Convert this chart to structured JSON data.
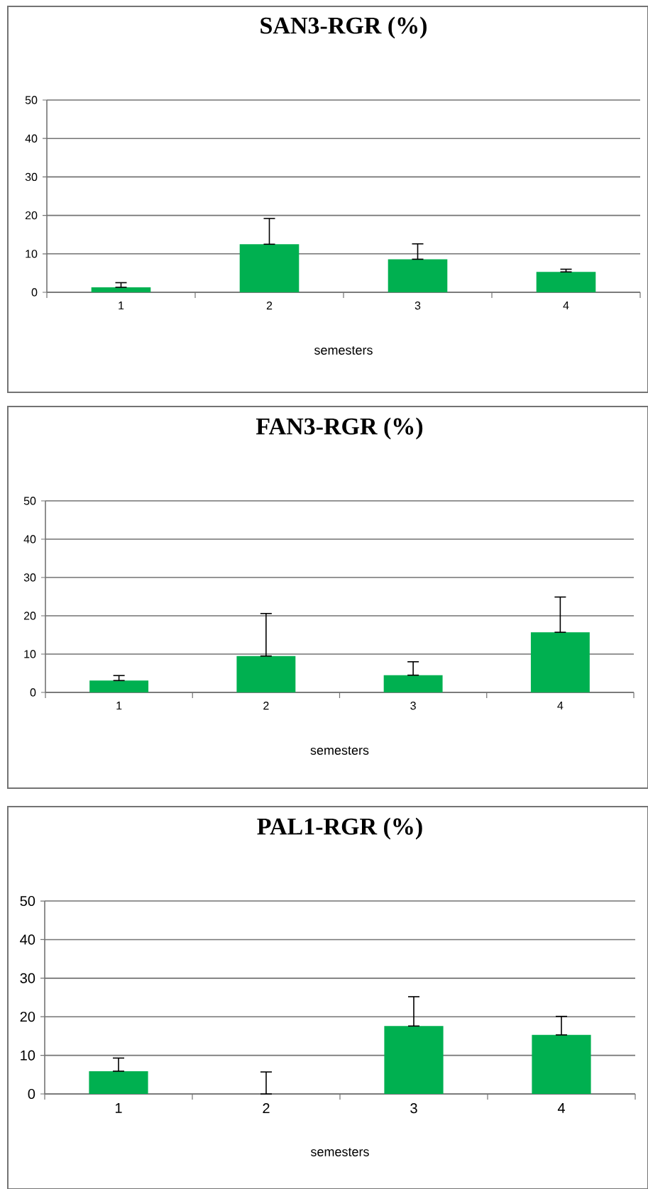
{
  "chart_data": [
    {
      "type": "bar",
      "title": "SAN3-RGR (%)",
      "xlabel": "semesters",
      "categories": [
        "1",
        "2",
        "3",
        "4"
      ],
      "values": [
        1.3,
        12.5,
        8.6,
        5.3
      ],
      "errors": [
        [
          1.3,
          2.5
        ],
        [
          12.5,
          19.2
        ],
        [
          8.6,
          12.6
        ],
        [
          5.3,
          6.0
        ]
      ],
      "color": "#00b050",
      "ylim": [
        0,
        50
      ],
      "yticks": [
        0,
        10,
        20,
        30,
        40,
        50
      ],
      "grid": "y"
    },
    {
      "type": "bar",
      "title": "FAN3-RGR (%)",
      "xlabel": "semesters",
      "categories": [
        "1",
        "2",
        "3",
        "4"
      ],
      "values": [
        3.1,
        9.5,
        4.5,
        15.7
      ],
      "errors": [
        [
          3.1,
          4.4
        ],
        [
          9.5,
          20.6
        ],
        [
          4.5,
          8.0
        ],
        [
          15.7,
          24.9
        ]
      ],
      "color": "#00b050",
      "ylim": [
        0,
        50
      ],
      "yticks": [
        0,
        10,
        20,
        30,
        40,
        50
      ],
      "grid": "y"
    },
    {
      "type": "bar",
      "title": "PAL1-RGR (%)",
      "xlabel": "semesters",
      "categories": [
        "1",
        "2",
        "3",
        "4"
      ],
      "values": [
        5.9,
        0,
        17.6,
        15.3
      ],
      "errors": [
        [
          5.9,
          9.3
        ],
        [
          0,
          5.7
        ],
        [
          17.6,
          25.2
        ],
        [
          15.3,
          20.1
        ]
      ],
      "color": "#00b050",
      "ylim": [
        0,
        50
      ],
      "yticks": [
        0,
        10,
        20,
        30,
        40,
        50
      ],
      "grid": "y"
    }
  ]
}
